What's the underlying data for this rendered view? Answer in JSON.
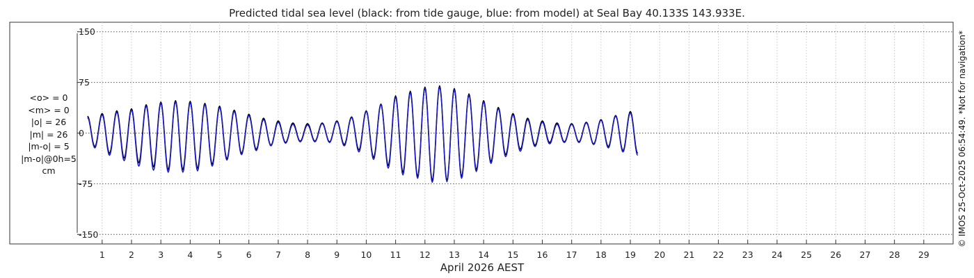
{
  "chart_data": {
    "type": "line",
    "title": "Predicted tidal sea level (black: from tide gauge, blue: from model) at Seal Bay 40.133S 143.933E.",
    "xlabel": "April 2026 AEST",
    "ylabel": "",
    "ylim": [
      -160,
      160
    ],
    "yticks": [
      150,
      75,
      0,
      -75,
      -150
    ],
    "ytick_labels": [
      "150",
      "75",
      "0",
      "-75",
      "-150"
    ],
    "xlim": [
      0.15,
      30.0
    ],
    "xticks": [
      1,
      2,
      3,
      4,
      5,
      6,
      7,
      8,
      9,
      10,
      11,
      12,
      13,
      14,
      15,
      16,
      17,
      18,
      19,
      20,
      21,
      22,
      23,
      24,
      25,
      26,
      27,
      28,
      29
    ],
    "xtick_labels": [
      "1",
      "2",
      "3",
      "4",
      "5",
      "6",
      "7",
      "8",
      "9",
      "10",
      "11",
      "12",
      "13",
      "14",
      "15",
      "16",
      "17",
      "18",
      "19",
      "20",
      "21",
      "22",
      "23",
      "24",
      "25",
      "26",
      "27",
      "28",
      "29"
    ],
    "grid": true,
    "units": "cm",
    "stats": [
      "<o> = 0",
      "<m> = 0",
      "|o| = 26",
      "|m| = 26",
      "|m-o| = 5",
      "|m-o|@0h=5",
      "cm"
    ],
    "series": [
      {
        "name": "tide gauge",
        "color": "#000000",
        "x_start": 0.5,
        "x_step": 0.25,
        "values": [
          25,
          -20,
          29,
          -30,
          33,
          -37,
          36,
          -44,
          42,
          -50,
          46,
          -54,
          48,
          -54,
          47,
          -52,
          44,
          -46,
          40,
          -38,
          34,
          -30,
          28,
          -24,
          22,
          -18,
          18,
          -14,
          15,
          -12,
          14,
          -12,
          15,
          -13,
          18,
          -17,
          24,
          -25,
          33,
          -36,
          43,
          -48,
          55,
          -58,
          62,
          -64,
          68,
          -70,
          70,
          -70,
          66,
          -64,
          58,
          -54,
          48,
          -42,
          38,
          -32,
          29,
          -24,
          22,
          -18,
          18,
          -14,
          15,
          -13,
          14,
          -13,
          16,
          -16,
          20,
          -20,
          26,
          -26,
          32,
          -30
        ]
      },
      {
        "name": "model",
        "color": "#1a1acc",
        "x_start": 0.5,
        "x_step": 0.25,
        "values": [
          23,
          -22,
          27,
          -33,
          31,
          -41,
          34,
          -49,
          40,
          -55,
          44,
          -58,
          46,
          -58,
          45,
          -56,
          42,
          -49,
          38,
          -40,
          32,
          -32,
          26,
          -26,
          20,
          -19,
          16,
          -15,
          13,
          -13,
          12,
          -13,
          14,
          -14,
          17,
          -19,
          23,
          -28,
          32,
          -39,
          42,
          -52,
          53,
          -62,
          60,
          -67,
          66,
          -73,
          68,
          -72,
          64,
          -67,
          56,
          -57,
          46,
          -45,
          36,
          -35,
          27,
          -27,
          20,
          -20,
          16,
          -16,
          13,
          -14,
          13,
          -14,
          15,
          -17,
          19,
          -22,
          25,
          -28,
          30,
          -33
        ]
      }
    ]
  },
  "sidebar_note": "© IMOS 25-Oct-2025 06:54:49. *Not for navigation*"
}
